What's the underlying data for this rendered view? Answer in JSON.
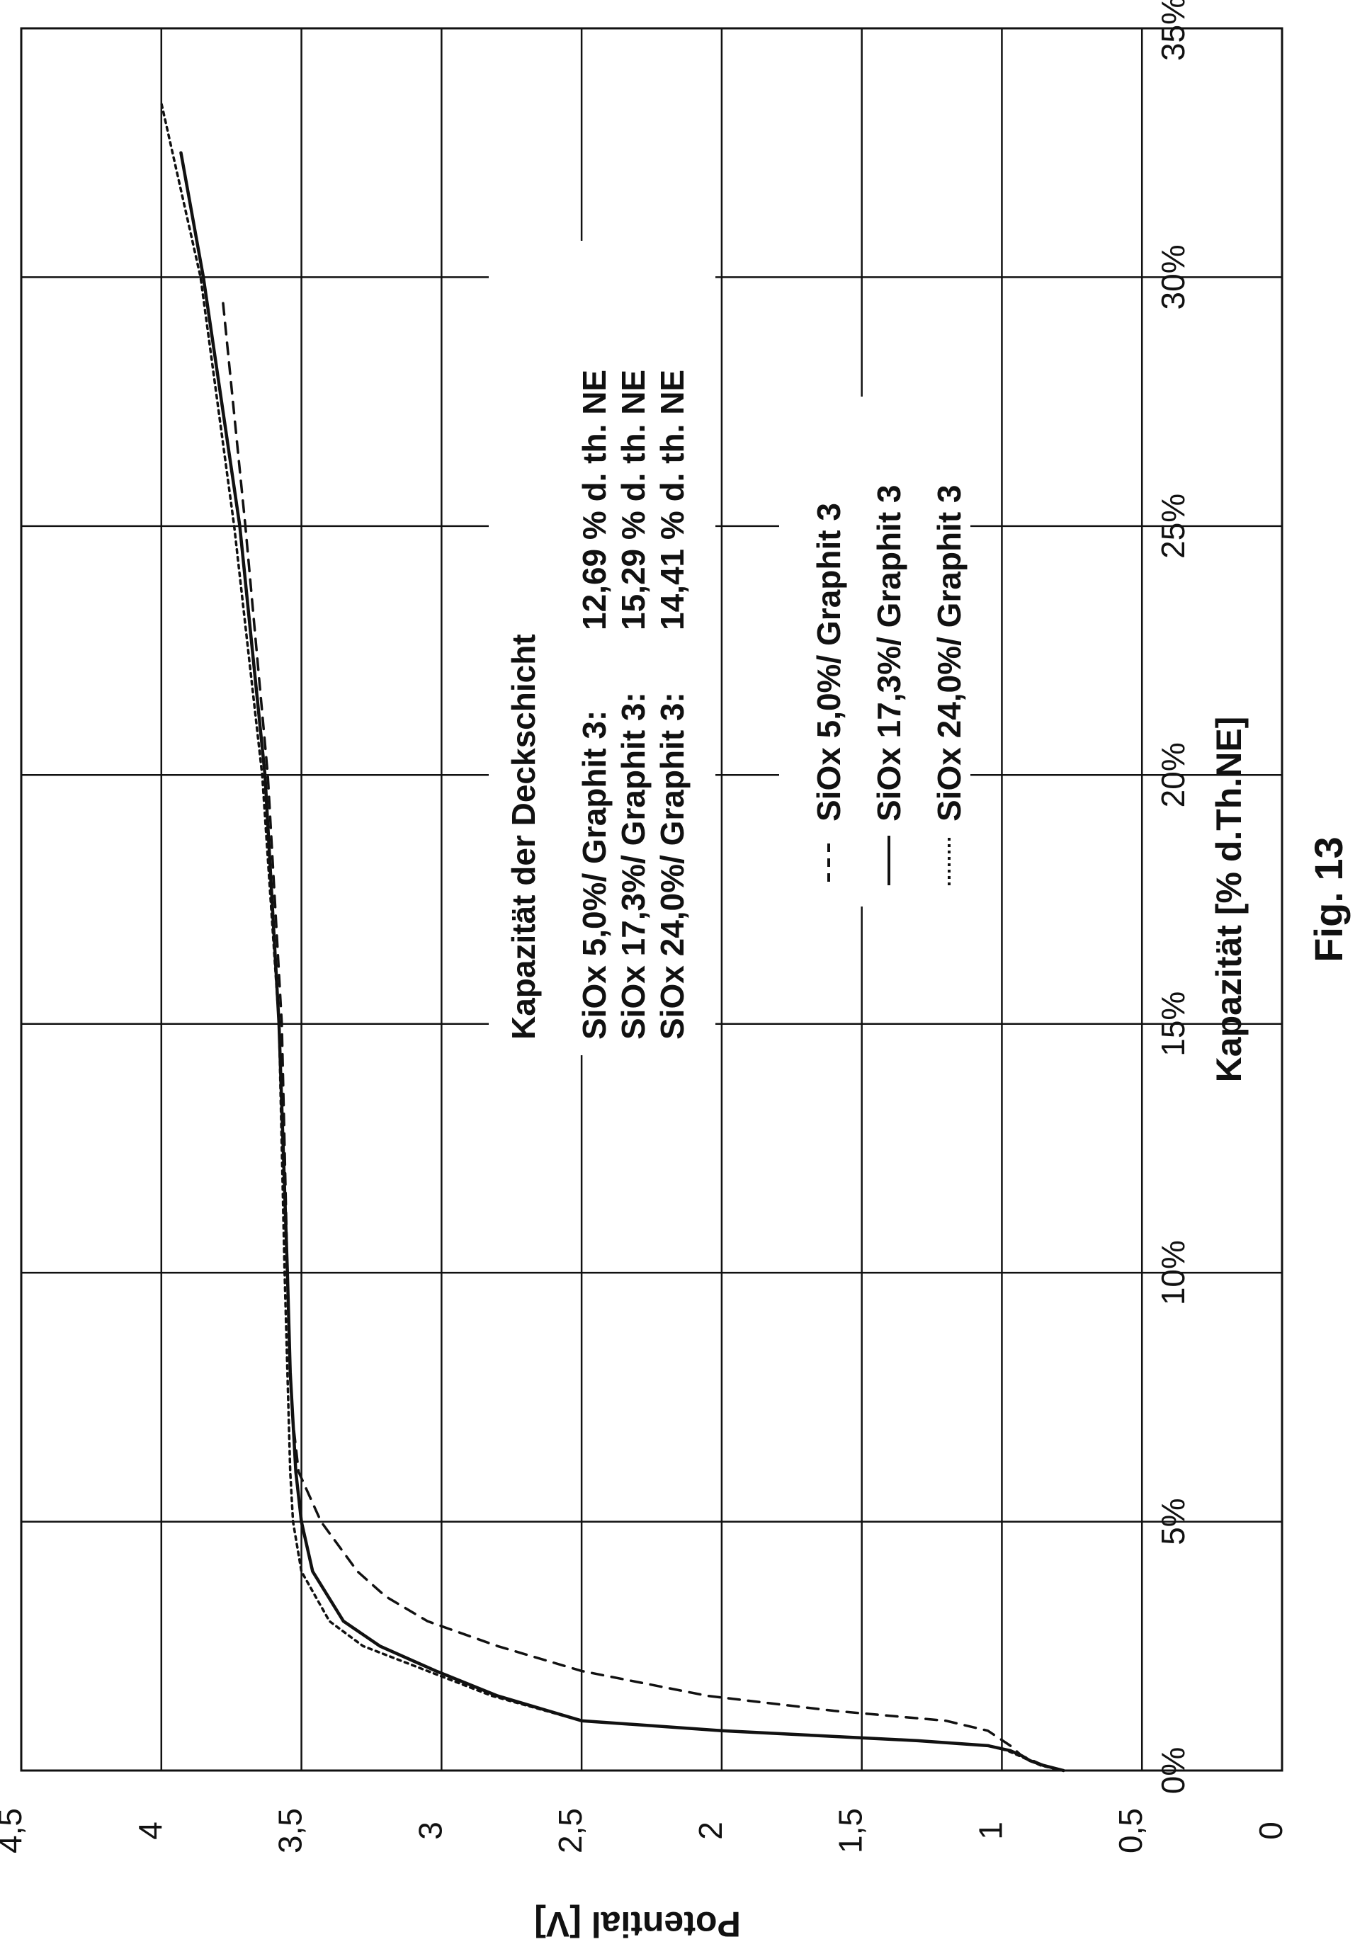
{
  "chart_data": {
    "type": "line",
    "xlabel": "Kapazität [% d.Th.NE]",
    "ylabel": "Potential [V]",
    "xlim": [
      0,
      35
    ],
    "ylim": [
      0,
      4.5
    ],
    "x_ticks": [
      "0%",
      "5%",
      "10%",
      "15%",
      "20%",
      "25%",
      "30%",
      "35%"
    ],
    "y_ticks": [
      "0",
      "0,5",
      "1",
      "1,5",
      "2",
      "2,5",
      "3",
      "3,5",
      "4",
      "4,5"
    ],
    "grid": true,
    "orientation": "rotated 90° counter-clockwise on page",
    "annotation": {
      "title": "Kapazität der Deckschicht",
      "rows": [
        {
          "label": "SiOx 5,0%/ Graphit 3:",
          "value": "12,69 % d. th. NE"
        },
        {
          "label": "SiOx 17,3%/ Graphit 3:",
          "value": "15,29 % d. th. NE"
        },
        {
          "label": "SiOx 24,0%/ Graphit 3:",
          "value": "14,41 % d. th. NE"
        }
      ]
    },
    "legend_position": "right",
    "series": [
      {
        "name": "SiOx 5,0%/ Graphit 3",
        "style": "dashed",
        "x": [
          0,
          0.1,
          0.3,
          0.5,
          0.8,
          1.0,
          1.2,
          1.5,
          2.0,
          2.5,
          3.0,
          3.5,
          4.0,
          5.0,
          6.0,
          7.0,
          8.0,
          10,
          15,
          20,
          25,
          29.5
        ],
        "y": [
          0.78,
          0.85,
          0.93,
          0.97,
          1.05,
          1.2,
          1.6,
          2.05,
          2.5,
          2.8,
          3.05,
          3.2,
          3.3,
          3.43,
          3.51,
          3.53,
          3.54,
          3.55,
          3.57,
          3.62,
          3.7,
          3.78
        ]
      },
      {
        "name": "SiOx 17,3%/ Graphit 3",
        "style": "solid",
        "x": [
          0,
          0.1,
          0.2,
          0.3,
          0.4,
          0.5,
          0.6,
          0.8,
          1.0,
          1.5,
          2.0,
          2.5,
          3.0,
          4.0,
          5.0,
          6.0,
          8.0,
          10,
          15,
          20,
          25,
          30,
          32.5
        ],
        "y": [
          0.78,
          0.85,
          0.9,
          0.93,
          0.97,
          1.05,
          1.3,
          2.0,
          2.5,
          2.8,
          3.02,
          3.22,
          3.35,
          3.46,
          3.5,
          3.52,
          3.54,
          3.55,
          3.58,
          3.63,
          3.72,
          3.85,
          3.93
        ]
      },
      {
        "name": "SiOx 24,0%/ Graphit 3",
        "style": "dotted",
        "x": [
          0,
          0.1,
          0.2,
          0.3,
          0.4,
          0.5,
          0.6,
          0.8,
          1.0,
          1.5,
          2.0,
          2.5,
          3.0,
          4.0,
          5.0,
          6.0,
          8.0,
          10,
          15,
          20,
          25,
          30,
          33.5
        ],
        "y": [
          0.78,
          0.86,
          0.9,
          0.94,
          0.98,
          1.05,
          1.3,
          2.0,
          2.5,
          2.82,
          3.05,
          3.28,
          3.4,
          3.5,
          3.53,
          3.54,
          3.55,
          3.56,
          3.58,
          3.64,
          3.74,
          3.86,
          4.0
        ]
      }
    ]
  },
  "caption": "Fig. 13",
  "colors": {
    "line": "#111111",
    "grid": "#111111",
    "background": "#ffffff"
  }
}
